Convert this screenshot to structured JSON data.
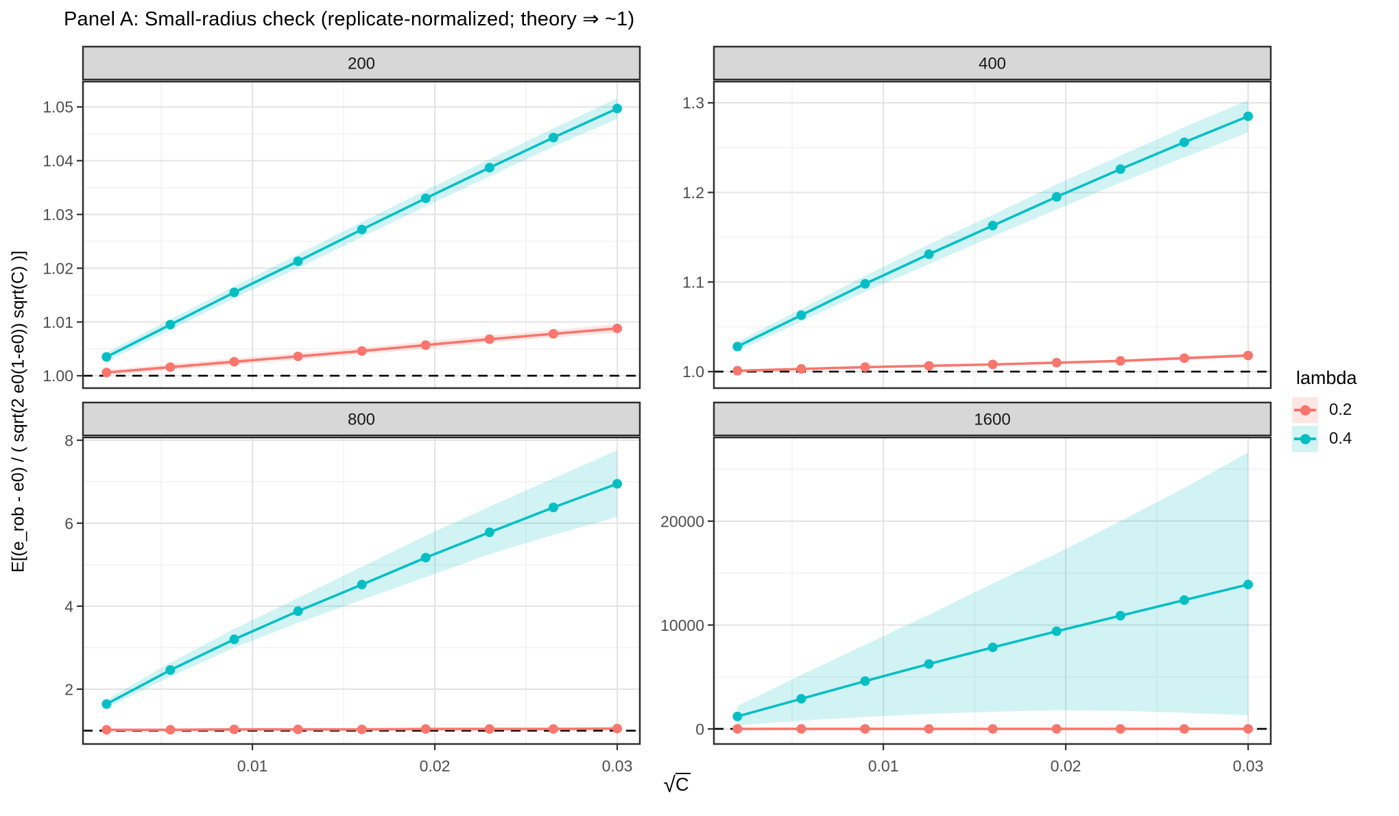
{
  "title": "Panel A: Small-radius check (replicate-normalized; theory ⇒ ~1)",
  "y_axis_title": "E[(e_rob - e0) / ( sqrt(2 e0(1-e0)) sqrt(C) )]",
  "x_axis_title": {
    "text": "√C",
    "radical": "√",
    "arg": "C"
  },
  "legend": {
    "title": "lambda",
    "items": [
      {
        "label": "0.2",
        "color": "#F8766D",
        "ribbon_fill": "rgba(248,118,109,0.18)"
      },
      {
        "label": "0.4",
        "color": "#00BFC4",
        "ribbon_fill": "rgba(0,191,196,0.18)"
      }
    ]
  },
  "chart_data": {
    "type": "line",
    "title": "Panel A: Small-radius check (replicate-normalized; theory ⇒ ~1)",
    "xlabel": "√C",
    "ylabel": "E[(e_rob - e0) / ( sqrt(2 e0(1-e0)) sqrt(C) )]",
    "legend_title": "lambda",
    "legend_position": "right",
    "grid": true,
    "x": [
      0.002,
      0.0055,
      0.009,
      0.0125,
      0.016,
      0.0195,
      0.023,
      0.0265,
      0.03
    ],
    "panels": [
      {
        "facet": "200",
        "xlim": [
          0.00071,
          0.03124
        ],
        "ylim": [
          0.9977,
          1.05471
        ],
        "hline": 1.0,
        "x_ticks": [
          {
            "v": 0.01,
            "label": "0.01"
          },
          {
            "v": 0.02,
            "label": "0.02"
          },
          {
            "v": 0.03,
            "label": "0.03"
          }
        ],
        "x_minor": [
          0.005,
          0.015,
          0.025
        ],
        "y_ticks": [
          {
            "v": 1.0,
            "label": "1.00"
          },
          {
            "v": 1.01,
            "label": "1.01"
          },
          {
            "v": 1.02,
            "label": "1.02"
          },
          {
            "v": 1.03,
            "label": "1.03"
          },
          {
            "v": 1.04,
            "label": "1.04"
          },
          {
            "v": 1.05,
            "label": "1.05"
          }
        ],
        "y_minor": [
          1.005,
          1.015,
          1.025,
          1.035,
          1.045
        ],
        "show_x_labels": false,
        "series": [
          {
            "name": "0.2",
            "color": "#F8766D",
            "ribbon_fill": "rgba(248,118,109,0.18)",
            "x": [
              0.002,
              0.0055,
              0.009,
              0.0125,
              0.016,
              0.0195,
              0.023,
              0.0265,
              0.03
            ],
            "y": [
              1.0006,
              1.0016,
              1.0026,
              1.0036,
              1.0046,
              1.0057,
              1.0068,
              1.0078,
              1.0088
            ],
            "low": [
              1.0001,
              1.001,
              1.002,
              1.003,
              1.004,
              1.005,
              1.0061,
              1.0071,
              1.008
            ],
            "high": [
              1.0011,
              1.0022,
              1.0032,
              1.0042,
              1.0052,
              1.0064,
              1.0075,
              1.0085,
              1.0096
            ]
          },
          {
            "name": "0.4",
            "color": "#00BFC4",
            "ribbon_fill": "rgba(0,191,196,0.18)",
            "x": [
              0.002,
              0.0055,
              0.009,
              0.0125,
              0.016,
              0.0195,
              0.023,
              0.0265,
              0.03
            ],
            "y": [
              1.0035,
              1.0095,
              1.0155,
              1.0213,
              1.0272,
              1.033,
              1.0387,
              1.0443,
              1.0497
            ],
            "low": [
              1.0027,
              1.0085,
              1.0144,
              1.02,
              1.0258,
              1.0315,
              1.0371,
              1.0426,
              1.0478
            ],
            "high": [
              1.0043,
              1.0105,
              1.0166,
              1.0226,
              1.0286,
              1.0345,
              1.0403,
              1.046,
              1.0516
            ]
          }
        ]
      },
      {
        "facet": "400",
        "xlim": [
          0.00071,
          0.03124
        ],
        "ylim": [
          0.9816,
          1.3237
        ],
        "hline": 1.0,
        "x_ticks": [
          {
            "v": 0.01,
            "label": "0.01"
          },
          {
            "v": 0.02,
            "label": "0.02"
          },
          {
            "v": 0.03,
            "label": "0.03"
          }
        ],
        "x_minor": [
          0.005,
          0.015,
          0.025
        ],
        "y_ticks": [
          {
            "v": 1.0,
            "label": "1.0"
          },
          {
            "v": 1.1,
            "label": "1.1"
          },
          {
            "v": 1.2,
            "label": "1.2"
          },
          {
            "v": 1.3,
            "label": "1.3"
          }
        ],
        "y_minor": [
          1.05,
          1.15,
          1.25
        ],
        "show_x_labels": false,
        "series": [
          {
            "name": "0.2",
            "color": "#F8766D",
            "ribbon_fill": "rgba(248,118,109,0.18)",
            "x": [
              0.002,
              0.0055,
              0.009,
              0.0125,
              0.016,
              0.0195,
              0.023,
              0.0265,
              0.03
            ],
            "y": [
              1.001,
              1.003,
              1.005,
              1.0065,
              1.008,
              1.01,
              1.012,
              1.015,
              1.018
            ],
            "low": [
              1.0,
              1.002,
              1.004,
              1.0055,
              1.007,
              1.009,
              1.011,
              1.013,
              1.016
            ],
            "high": [
              1.002,
              1.004,
              1.006,
              1.0075,
              1.009,
              1.011,
              1.013,
              1.017,
              1.02
            ]
          },
          {
            "name": "0.4",
            "color": "#00BFC4",
            "ribbon_fill": "rgba(0,191,196,0.18)",
            "x": [
              0.002,
              0.0055,
              0.009,
              0.0125,
              0.016,
              0.0195,
              0.023,
              0.0265,
              0.03
            ],
            "y": [
              1.028,
              1.063,
              1.098,
              1.131,
              1.163,
              1.195,
              1.226,
              1.256,
              1.285
            ],
            "low": [
              1.023,
              1.056,
              1.089,
              1.12,
              1.151,
              1.181,
              1.211,
              1.239,
              1.267
            ],
            "high": [
              1.033,
              1.07,
              1.107,
              1.142,
              1.175,
              1.209,
              1.241,
              1.273,
              1.303
            ]
          }
        ]
      },
      {
        "facet": "800",
        "xlim": [
          0.00071,
          0.03124
        ],
        "ylim": [
          0.678,
          8.066
        ],
        "hline": 1.0,
        "x_ticks": [
          {
            "v": 0.01,
            "label": "0.01"
          },
          {
            "v": 0.02,
            "label": "0.02"
          },
          {
            "v": 0.03,
            "label": "0.03"
          }
        ],
        "x_minor": [
          0.005,
          0.015,
          0.025
        ],
        "y_ticks": [
          {
            "v": 2,
            "label": "2"
          },
          {
            "v": 4,
            "label": "4"
          },
          {
            "v": 6,
            "label": "6"
          },
          {
            "v": 8,
            "label": "8"
          }
        ],
        "y_minor": [
          1,
          3,
          5,
          7
        ],
        "show_x_labels": true,
        "series": [
          {
            "name": "0.2",
            "color": "#F8766D",
            "ribbon_fill": "rgba(248,118,109,0.18)",
            "x": [
              0.002,
              0.0055,
              0.009,
              0.0125,
              0.016,
              0.0195,
              0.023,
              0.0265,
              0.03
            ],
            "y": [
              1.02,
              1.02,
              1.03,
              1.03,
              1.03,
              1.04,
              1.04,
              1.04,
              1.05
            ],
            "low": [
              0.99,
              0.99,
              1.0,
              1.0,
              1.0,
              1.01,
              1.01,
              1.01,
              1.02
            ],
            "high": [
              1.05,
              1.05,
              1.06,
              1.06,
              1.06,
              1.07,
              1.07,
              1.07,
              1.08
            ]
          },
          {
            "name": "0.4",
            "color": "#00BFC4",
            "ribbon_fill": "rgba(0,191,196,0.18)",
            "x": [
              0.002,
              0.0055,
              0.009,
              0.0125,
              0.016,
              0.0195,
              0.023,
              0.0265,
              0.03
            ],
            "y": [
              1.64,
              2.46,
              3.2,
              3.88,
              4.52,
              5.17,
              5.78,
              6.38,
              6.95
            ],
            "low": [
              1.55,
              2.3,
              3.0,
              3.6,
              4.15,
              4.7,
              5.25,
              5.72,
              6.15
            ],
            "high": [
              1.74,
              2.64,
              3.45,
              4.2,
              4.95,
              5.7,
              6.4,
              7.08,
              7.76
            ]
          }
        ]
      },
      {
        "facet": "1600",
        "xlim": [
          0.00071,
          0.03124
        ],
        "ylim": [
          -1452,
          28053
        ],
        "hline": 1.0,
        "x_ticks": [
          {
            "v": 0.01,
            "label": "0.01"
          },
          {
            "v": 0.02,
            "label": "0.02"
          },
          {
            "v": 0.03,
            "label": "0.03"
          }
        ],
        "x_minor": [
          0.005,
          0.015,
          0.025
        ],
        "y_ticks": [
          {
            "v": 0,
            "label": "0"
          },
          {
            "v": 10000,
            "label": "10000"
          },
          {
            "v": 20000,
            "label": "20000"
          }
        ],
        "y_minor": [
          5000,
          15000,
          25000
        ],
        "show_x_labels": true,
        "series": [
          {
            "name": "0.2",
            "color": "#F8766D",
            "ribbon_fill": "rgba(248,118,109,0.18)",
            "x": [
              0.002,
              0.0055,
              0.009,
              0.0125,
              0.016,
              0.0195,
              0.023,
              0.0265,
              0.03
            ],
            "y": [
              1,
              1,
              1,
              1,
              1,
              1,
              1,
              1,
              1
            ],
            "low": [
              -40,
              -40,
              -40,
              -40,
              -40,
              -40,
              -40,
              -40,
              -40
            ],
            "high": [
              40,
              40,
              40,
              40,
              40,
              40,
              40,
              40,
              40
            ]
          },
          {
            "name": "0.4",
            "color": "#00BFC4",
            "ribbon_fill": "rgba(0,191,196,0.18)",
            "x": [
              0.002,
              0.0055,
              0.009,
              0.0125,
              0.016,
              0.0195,
              0.023,
              0.0265,
              0.03
            ],
            "y": [
              1200,
              2900,
              4600,
              6250,
              7850,
              9400,
              10900,
              12400,
              13900
            ],
            "low": [
              350,
              800,
              1150,
              1450,
              1650,
              1800,
              1750,
              1550,
              1320
            ],
            "high": [
              2200,
              5200,
              8100,
              11000,
              14000,
              16900,
              20000,
              23200,
              26600
            ]
          }
        ]
      }
    ]
  }
}
